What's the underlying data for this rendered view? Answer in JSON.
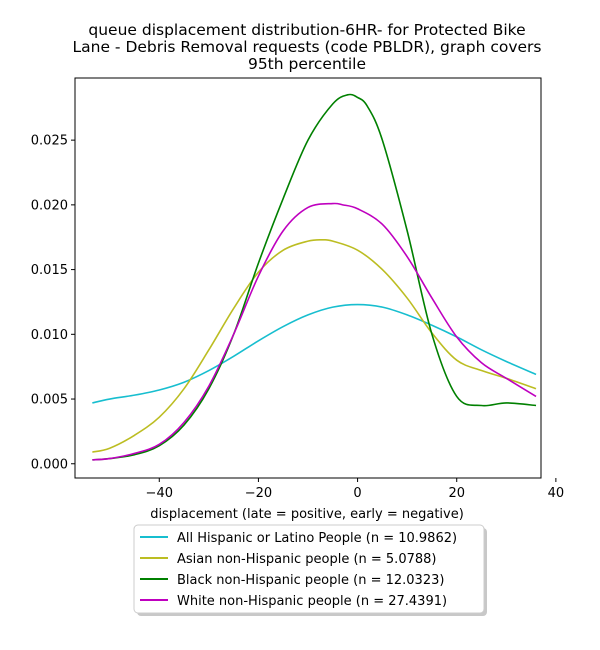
{
  "chart_data": {
    "type": "line",
    "title_lines": [
      "queue displacement distribution-6HR-  for Protected Bike",
      "Lane - Debris Removal  requests (code PBLDR), graph covers",
      "95th percentile"
    ],
    "xlabel": "displacement (late = positive, early = negative)",
    "ylabel": "",
    "xlim": [
      -57,
      37
    ],
    "ylim": [
      -0.0011,
      0.0298
    ],
    "x_ticks": [
      -40,
      -20,
      0,
      20,
      40
    ],
    "x_tick_labels": [
      "−40",
      "−20",
      "0",
      "20",
      "40"
    ],
    "y_ticks": [
      0.0,
      0.005,
      0.01,
      0.015,
      0.02,
      0.025
    ],
    "y_tick_labels": [
      "0.000",
      "0.005",
      "0.010",
      "0.015",
      "0.020",
      "0.025"
    ],
    "legend_position": "below",
    "series": [
      {
        "name": "All Hispanic or Latino People (n = 10.9862)",
        "color": "#17becf",
        "x": [
          -53.5,
          -50,
          -45,
          -40,
          -35,
          -30,
          -25,
          -20,
          -15,
          -10,
          -5,
          0,
          5,
          10,
          15,
          20,
          25,
          30,
          36
        ],
        "y": [
          0.0047,
          0.005,
          0.0053,
          0.0057,
          0.0063,
          0.0072,
          0.0083,
          0.0095,
          0.0106,
          0.0115,
          0.0121,
          0.0123,
          0.0121,
          0.0115,
          0.0107,
          0.0098,
          0.0088,
          0.0079,
          0.0069
        ]
      },
      {
        "name": "Asian non-Hispanic people (n = 5.0788)",
        "color": "#bcbd22",
        "x": [
          -53.5,
          -50,
          -45,
          -40,
          -35,
          -30,
          -25,
          -20,
          -15,
          -10,
          -7,
          -5,
          0,
          5,
          10,
          15,
          20,
          25,
          30,
          36
        ],
        "y": [
          0.0009,
          0.0012,
          0.0022,
          0.0036,
          0.0058,
          0.0088,
          0.012,
          0.0148,
          0.0165,
          0.0172,
          0.0173,
          0.0172,
          0.0165,
          0.015,
          0.0128,
          0.0101,
          0.008,
          0.0072,
          0.0066,
          0.0058
        ]
      },
      {
        "name": "Black non-Hispanic people (n = 12.0323)",
        "color": "#008000",
        "x": [
          -53.5,
          -50,
          -45,
          -40,
          -35,
          -30,
          -25,
          -20,
          -15,
          -10,
          -5,
          -2,
          0,
          2,
          5,
          10,
          15,
          20,
          25,
          30,
          36
        ],
        "y": [
          0.0003,
          0.0004,
          0.0007,
          0.0014,
          0.003,
          0.0058,
          0.01,
          0.0155,
          0.0205,
          0.025,
          0.0278,
          0.0285,
          0.0283,
          0.0276,
          0.025,
          0.018,
          0.01,
          0.0052,
          0.0045,
          0.0047,
          0.0045
        ]
      },
      {
        "name": "White non-Hispanic people (n = 27.4391)",
        "color": "#bf00bf",
        "x": [
          -53.5,
          -50,
          -45,
          -40,
          -35,
          -30,
          -25,
          -20,
          -15,
          -10,
          -5,
          -3,
          0,
          5,
          10,
          15,
          20,
          25,
          30,
          36
        ],
        "y": [
          0.0003,
          0.0004,
          0.0008,
          0.0015,
          0.0032,
          0.006,
          0.01,
          0.0145,
          0.018,
          0.0198,
          0.0201,
          0.02,
          0.0197,
          0.0185,
          0.016,
          0.0128,
          0.0098,
          0.0078,
          0.0066,
          0.0052
        ]
      }
    ]
  }
}
